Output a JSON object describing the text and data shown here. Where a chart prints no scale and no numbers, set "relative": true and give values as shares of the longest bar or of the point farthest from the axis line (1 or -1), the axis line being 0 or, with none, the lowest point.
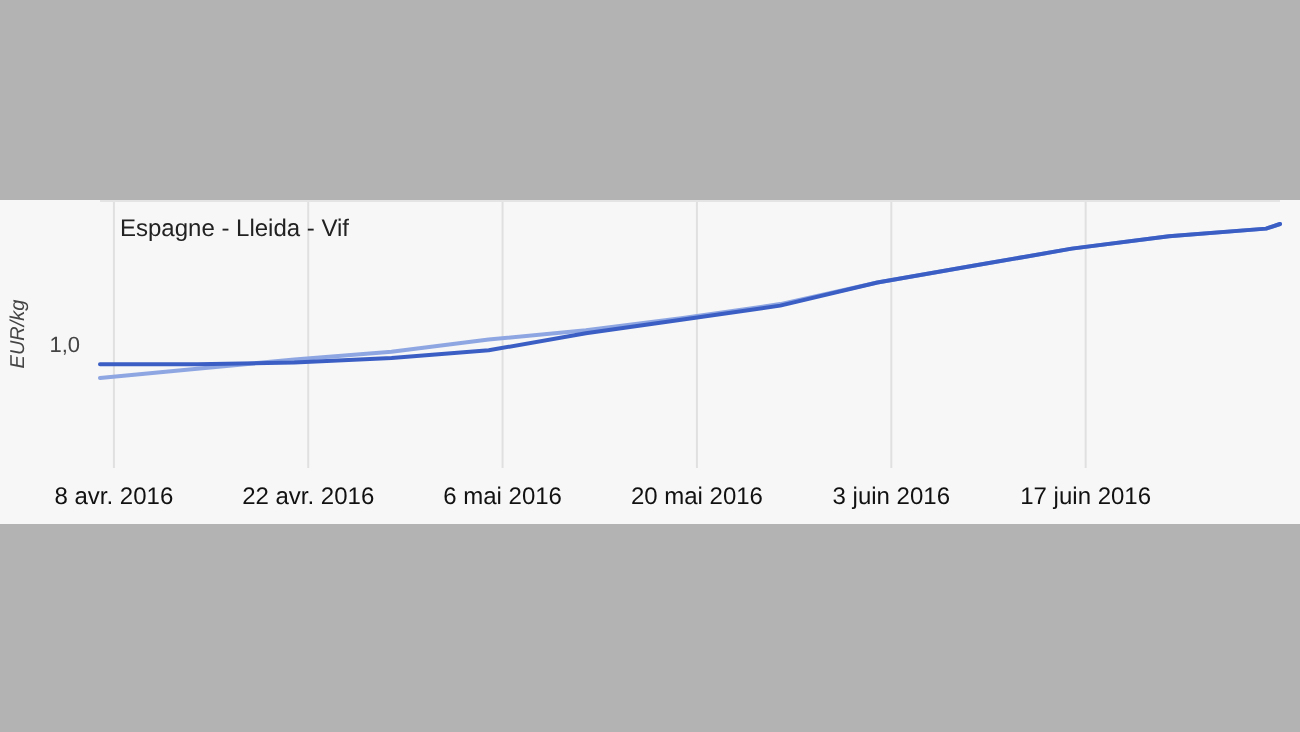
{
  "chart_data": {
    "type": "line",
    "title": "Espagne - Lleida - Vif",
    "ylabel": "EUR/kg",
    "relative": true,
    "grid": "x",
    "line_style": "solid",
    "marker": "none",
    "x": [
      "2016-04-07",
      "2016-04-14",
      "2016-04-21",
      "2016-04-28",
      "2016-05-05",
      "2016-05-12",
      "2016-05-19",
      "2016-05-26",
      "2016-06-02",
      "2016-06-09",
      "2016-06-16",
      "2016-06-23",
      "2016-06-30",
      "2016-07-01"
    ],
    "xlim": [
      "2016-04-07",
      "2016-07-01"
    ],
    "xticks": [
      {
        "value": "2016-04-08",
        "label": "8 avr. 2016"
      },
      {
        "value": "2016-04-22",
        "label": "22 avr. 2016"
      },
      {
        "value": "2016-05-06",
        "label": "6 mai 2016"
      },
      {
        "value": "2016-05-20",
        "label": "20 mai 2016"
      },
      {
        "value": "2016-06-03",
        "label": "3 juin 2016"
      },
      {
        "value": "2016-06-17",
        "label": "17 juin 2016"
      }
    ],
    "series": [
      {
        "color": "#8ea6e2",
        "values": [
          0,
          0.06,
          0.12,
          0.17,
          0.25,
          0.31,
          0.39,
          0.48,
          0.62,
          0.73,
          0.84,
          0.92,
          0.97,
          1
        ]
      },
      {
        "color": "#3a5ec4",
        "values": [
          0.09,
          0.09,
          0.1,
          0.13,
          0.18,
          0.29,
          0.38,
          0.47,
          0.62,
          0.73,
          0.84,
          0.92,
          0.97,
          1
        ]
      }
    ],
    "annotations": [
      "1,0"
    ]
  }
}
